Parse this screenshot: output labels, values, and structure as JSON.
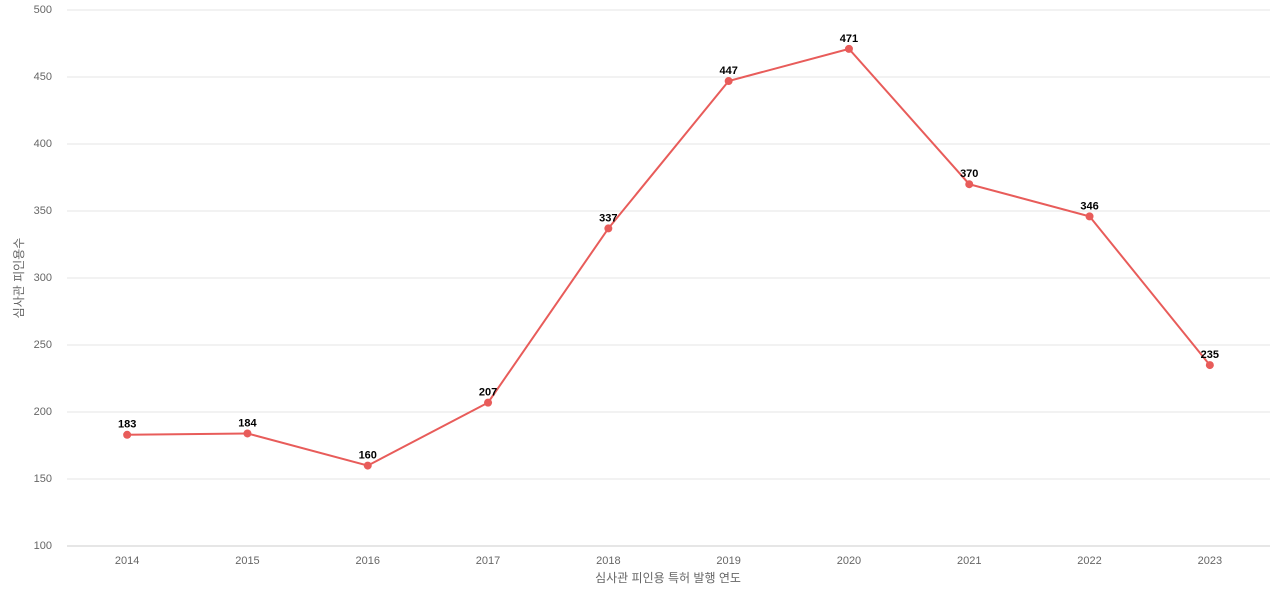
{
  "chart_data": {
    "type": "line",
    "xlabel": "심사관 피인용 특허 발행 연도",
    "ylabel": "심사관 피인용수",
    "categories": [
      "2014",
      "2015",
      "2016",
      "2017",
      "2018",
      "2019",
      "2020",
      "2021",
      "2022",
      "2023"
    ],
    "series": [
      {
        "name": "심사관 피인용수",
        "color": "#e85c5a",
        "values": [
          183,
          184,
          160,
          207,
          337,
          447,
          471,
          370,
          346,
          235
        ]
      }
    ],
    "ylim": [
      100,
      500
    ],
    "yticks": [
      100,
      150,
      200,
      250,
      300,
      350,
      400,
      450,
      500
    ],
    "grid": true
  }
}
